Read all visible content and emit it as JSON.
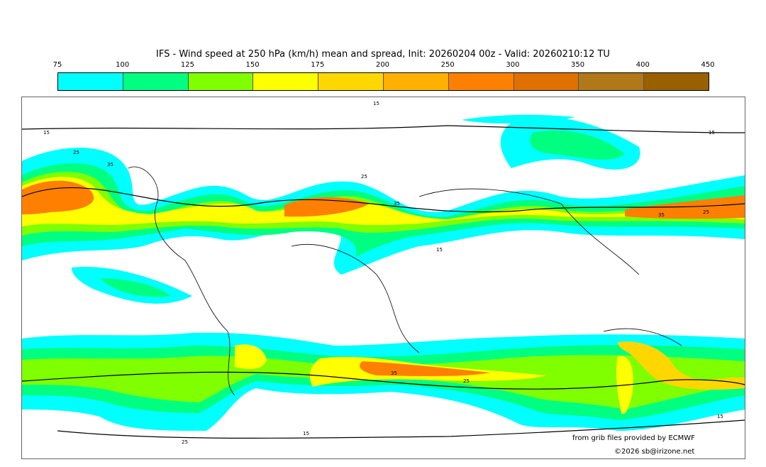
{
  "title": "IFS - Wind speed at 250 hPa (km/h) mean and spread, Init: 20260204 00z - Valid: 20260210:12 TU",
  "colorbar": {
    "ticks": [
      "75",
      "100",
      "125",
      "150",
      "175",
      "200",
      "250",
      "300",
      "350",
      "400",
      "450"
    ],
    "colors": [
      "#00ffff",
      "#00ff80",
      "#80ff00",
      "#ffff00",
      "#ffd700",
      "#ffb000",
      "#ff8000",
      "#e07000",
      "#b07818",
      "#996000"
    ]
  },
  "contour_labels": [
    "15",
    "25",
    "35",
    "15",
    "25",
    "35",
    "15",
    "25",
    "35",
    "15",
    "25",
    "15",
    "35",
    "25",
    "15"
  ],
  "credits": {
    "source": "from grib files provided by ECMWF",
    "copyright": "©2026 sb@irizone.net"
  }
}
